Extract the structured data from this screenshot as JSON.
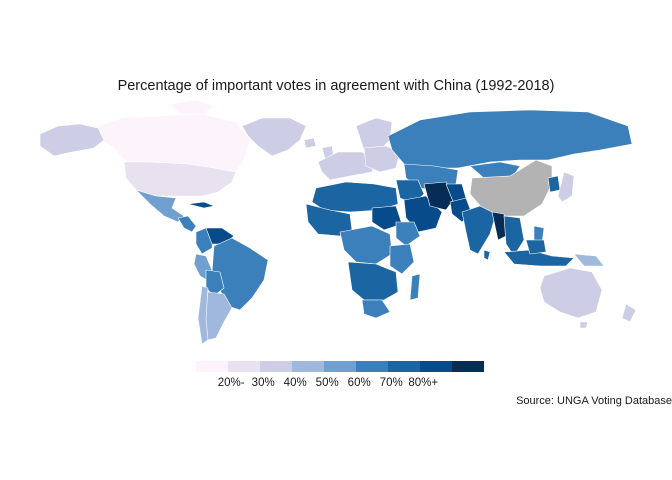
{
  "title": "Percentage of important votes in agreement with China (1992-2018)",
  "source": "Source: UNGA Voting Database",
  "colors": {
    "no_data": "#b3b3b3",
    "ramp": [
      "#fdf3fb",
      "#e7e1f0",
      "#cdcde6",
      "#9fb8dc",
      "#6fa0cf",
      "#3c80bb",
      "#1b65a3",
      "#084b8a",
      "#062d56"
    ]
  },
  "legend": {
    "labels": [
      "20%-",
      "30%",
      "40%",
      "50%",
      "60%",
      "70%",
      "80%+"
    ],
    "values": [
      20,
      30,
      40,
      50,
      60,
      70,
      80
    ]
  },
  "regions": [
    {
      "name": "Canada",
      "share": 25
    },
    {
      "name": "United States",
      "share": 15
    },
    {
      "name": "Greenland",
      "share": 10
    },
    {
      "name": "Mexico",
      "share": 45
    },
    {
      "name": "Central America",
      "share": 58
    },
    {
      "name": "Cuba",
      "share": 80
    },
    {
      "name": "Colombia",
      "share": 65
    },
    {
      "name": "Venezuela",
      "share": 75
    },
    {
      "name": "Brazil",
      "share": 55
    },
    {
      "name": "Peru",
      "share": 48
    },
    {
      "name": "Bolivia",
      "share": 55
    },
    {
      "name": "Argentina",
      "share": 40
    },
    {
      "name": "Chile",
      "share": 42
    },
    {
      "name": "Western Europe",
      "share": 25
    },
    {
      "name": "Scandinavia",
      "share": 22
    },
    {
      "name": "Eastern Europe",
      "share": 28
    },
    {
      "name": "Russia",
      "share": 55
    },
    {
      "name": "Kazakhstan",
      "share": 60
    },
    {
      "name": "Mongolia",
      "share": 55
    },
    {
      "name": "North Africa",
      "share": 70
    },
    {
      "name": "West Africa",
      "share": 66
    },
    {
      "name": "Central Africa",
      "share": 58
    },
    {
      "name": "Ethiopia",
      "share": 60
    },
    {
      "name": "Sudan",
      "share": 70
    },
    {
      "name": "East Africa",
      "share": 55
    },
    {
      "name": "Southern Africa",
      "share": 66
    },
    {
      "name": "South Africa",
      "share": 55
    },
    {
      "name": "Madagascar",
      "share": 55
    },
    {
      "name": "Saudi Arabia",
      "share": 75
    },
    {
      "name": "Iran",
      "share": 85
    },
    {
      "name": "Afghanistan",
      "share": 75
    },
    {
      "name": "Pakistan",
      "share": 80
    },
    {
      "name": "India",
      "share": 68
    },
    {
      "name": "Myanmar",
      "share": 80
    },
    {
      "name": "Southeast Asia",
      "share": 66
    },
    {
      "name": "Indonesia",
      "share": 68
    },
    {
      "name": "Philippines",
      "share": 62
    },
    {
      "name": "Japan",
      "share": 28
    },
    {
      "name": "Korea",
      "share": 62
    },
    {
      "name": "Papua New Guinea",
      "share": 40
    },
    {
      "name": "Australia",
      "share": 25
    },
    {
      "name": "New Zealand",
      "share": 28
    },
    {
      "name": "China",
      "share": null
    }
  ]
}
